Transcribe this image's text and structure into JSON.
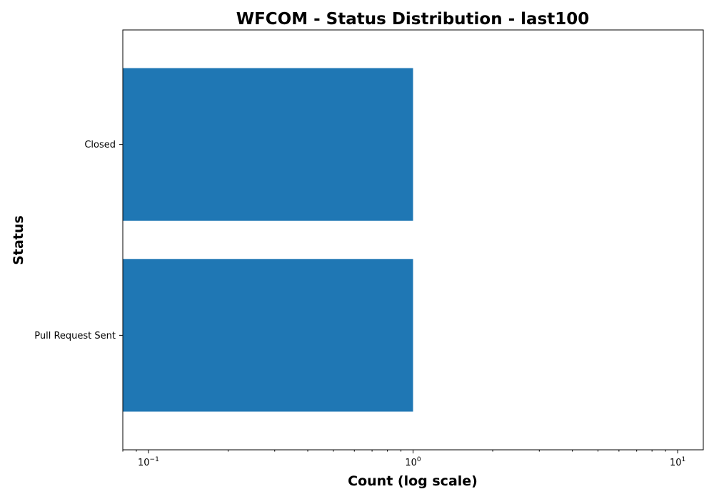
{
  "chart_data": {
    "type": "bar",
    "orientation": "horizontal",
    "title": "WFCOM - Status Distribution - last100",
    "xlabel": "Count (log scale)",
    "ylabel": "Status",
    "x_scale": "log",
    "xlim": [
      0.08,
      12.5
    ],
    "x_ticks": [
      {
        "value": 0.1,
        "base": "10",
        "exp": "−1"
      },
      {
        "value": 1,
        "base": "10",
        "exp": "0"
      },
      {
        "value": 10,
        "base": "10",
        "exp": "1"
      }
    ],
    "categories": [
      "Closed",
      "Pull Request Sent"
    ],
    "values": [
      1,
      1
    ],
    "bar_color": "#1f77b4",
    "grid": false,
    "legend": "none"
  }
}
